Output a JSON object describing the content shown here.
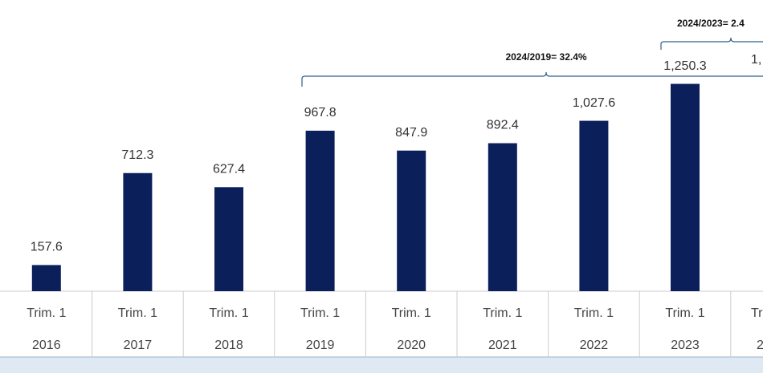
{
  "chart_data": {
    "type": "bar",
    "categories": [
      "2016",
      "2017",
      "2018",
      "2019",
      "2020",
      "2021",
      "2022",
      "2023"
    ],
    "quarters": [
      "Trim. 1",
      "Trim. 1",
      "Trim. 1",
      "Trim. 1",
      "Trim. 1",
      "Trim. 1",
      "Trim. 1",
      "Trim. 1"
    ],
    "values": [
      157.6,
      712.3,
      627.4,
      967.8,
      847.9,
      892.4,
      1027.6,
      1250.3
    ],
    "value_labels": [
      "157.6",
      "712.3",
      "627.4",
      "967.8",
      "847.9",
      "892.4",
      "1,027.6",
      "1,250.3"
    ],
    "color": "#0b1f5b",
    "ylim": [
      0,
      1756
    ],
    "annotations": [
      "2024/2019= 32.4%",
      "2024/2023= 2.4"
    ],
    "edge_fragments": [
      "1,",
      "Tr",
      "2"
    ]
  }
}
